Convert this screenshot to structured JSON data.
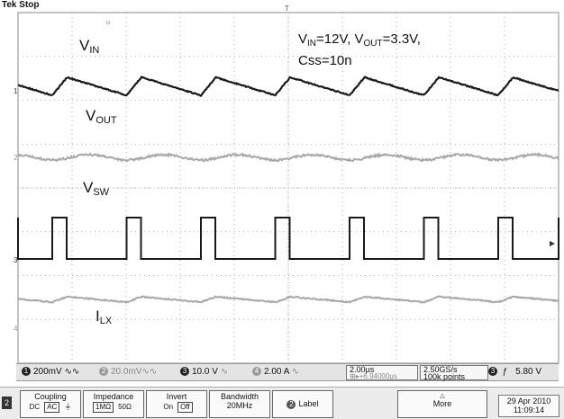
{
  "status": "Tek Stop",
  "trigger_marker": "T",
  "trace_labels": {
    "vin": {
      "main": "V",
      "sub": "IN"
    },
    "vout": {
      "main": "V",
      "sub": "OUT"
    },
    "vsw": {
      "main": "V",
      "sub": "SW"
    },
    "ilx": {
      "main": "I",
      "sub": "LX"
    }
  },
  "conditions": {
    "vin_main": "V",
    "vin_sub": "IN",
    "vin_val": "=12V, ",
    "vout_main": "V",
    "vout_sub": "OUT",
    "vout_val": "=3.3V,",
    "css": "Css=10n"
  },
  "channel_markers": [
    "1",
    "2",
    "3",
    "4"
  ],
  "readout": {
    "ch1": {
      "num": "1",
      "text": "200mV ∿∿"
    },
    "ch2": {
      "num": "2",
      "text": "20.0mV∿∿"
    },
    "ch3": {
      "num": "3",
      "text": "10.0 V"
    },
    "ch4": {
      "num": "4",
      "text": "2.00 A"
    },
    "timebase": "2.00µs",
    "offset": "⊞▸+6.94000µs",
    "sample_rate": "2.50GS/s",
    "record": "100k points",
    "trigger_src": "3",
    "trigger_slope": "ƒ",
    "trigger_level": "5.80 V"
  },
  "menu": {
    "channel": "2",
    "coupling": {
      "title": "Coupling",
      "options": [
        "DC",
        "AC",
        "⏚"
      ],
      "selected": "AC"
    },
    "impedance": {
      "title": "Impedance",
      "options": [
        "1MΩ",
        "50Ω"
      ],
      "selected": "1MΩ"
    },
    "invert": {
      "title": "Invert",
      "options": [
        "On",
        "Off"
      ],
      "selected": "Off"
    },
    "bandwidth": {
      "title": "Bandwidth",
      "value": "20MHz"
    },
    "label": {
      "num": "2",
      "text": "Label"
    },
    "more": "More",
    "date": "29 Apr 2010",
    "time": "11:09:14"
  },
  "colors": {
    "trace_dark": "#1a1a1a",
    "trace_light": "#a8a8a8",
    "grid": "#9a9a9a"
  }
}
